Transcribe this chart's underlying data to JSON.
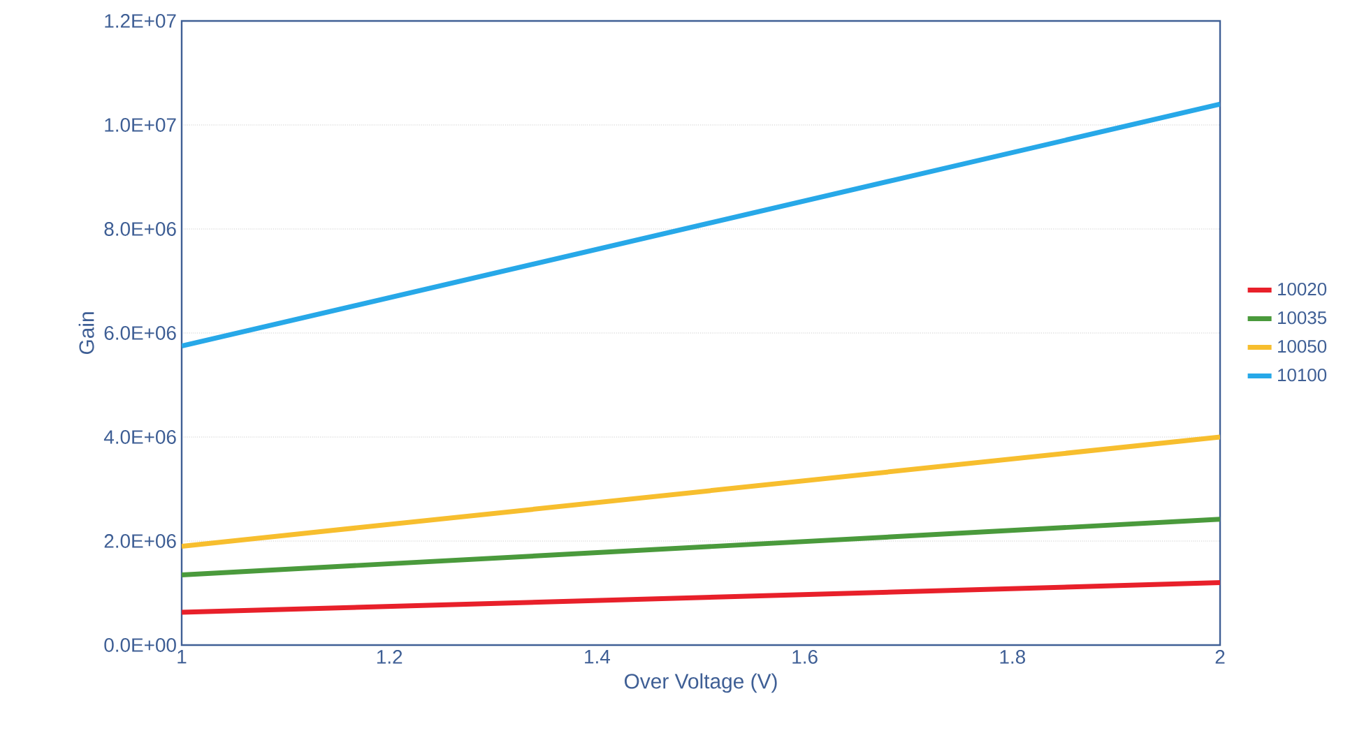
{
  "chart_data": {
    "type": "line",
    "xlabel": "Over Voltage (V)",
    "ylabel": "Gain",
    "x": [
      1,
      2
    ],
    "series": [
      {
        "name": "10020",
        "color": "#e8202a",
        "values": [
          630000,
          1200000
        ]
      },
      {
        "name": "10035",
        "color": "#4a9a3c",
        "values": [
          1350000,
          2420000
        ]
      },
      {
        "name": "10050",
        "color": "#f7be2e",
        "values": [
          1900000,
          4000000
        ]
      },
      {
        "name": "10100",
        "color": "#27a8e8",
        "values": [
          5750000,
          10400000
        ]
      }
    ],
    "xlim": [
      1,
      2
    ],
    "xticks": [
      1,
      1.2,
      1.4,
      1.6,
      1.8,
      2
    ],
    "ylim": [
      0,
      12000000
    ],
    "yticks": [
      {
        "value": 0,
        "label": "0.0E+00"
      },
      {
        "value": 2000000,
        "label": "2.0E+06"
      },
      {
        "value": 4000000,
        "label": "4.0E+06"
      },
      {
        "value": 6000000,
        "label": "6.0E+06"
      },
      {
        "value": 8000000,
        "label": "8.0E+06"
      },
      {
        "value": 10000000,
        "label": "1.0E+07"
      },
      {
        "value": 12000000,
        "label": "1.2E+07"
      }
    ],
    "grid": "y",
    "legend": "right",
    "marker": "none",
    "line_style": "solid"
  }
}
